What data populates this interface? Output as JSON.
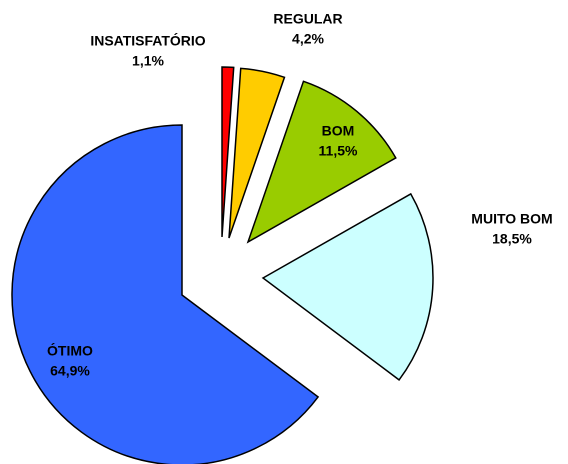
{
  "chart_data": {
    "type": "pie",
    "categories": [
      "INSATISFATÓRIO",
      "REGULAR",
      "BOM",
      "MUITO BOM",
      "ÓTIMO"
    ],
    "values": [
      1.1,
      4.2,
      11.5,
      18.5,
      64.9
    ],
    "value_labels": [
      "1,1%",
      "4,2%",
      "11,5%",
      "18,5%",
      "64,9%"
    ],
    "colors": [
      "#ff0000",
      "#ffcc00",
      "#99cc00",
      "#ccffff",
      "#3366ff"
    ]
  }
}
